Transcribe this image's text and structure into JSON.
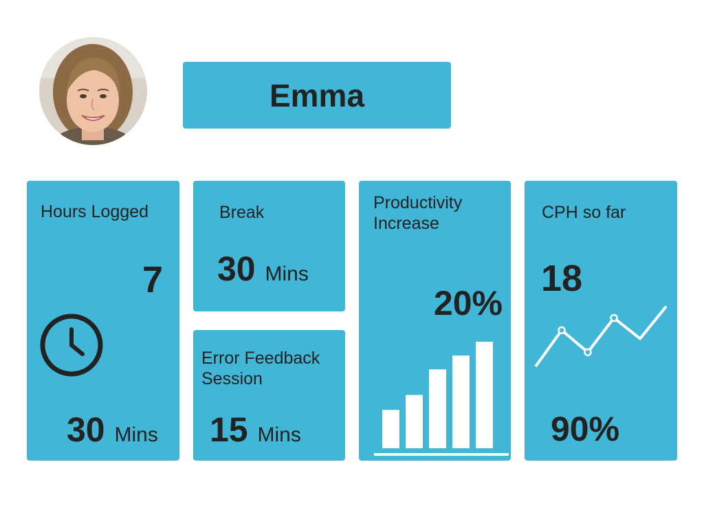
{
  "theme": {
    "card_color": "#42b6d6",
    "text_color": "#222222",
    "chart_color": "#ffffff"
  },
  "profile": {
    "name": "Emma",
    "avatar_icon": "person-photo"
  },
  "cards": {
    "hours_logged": {
      "label": "Hours Logged",
      "hours": "7",
      "minutes": "30",
      "unit": "Mins",
      "icon": "clock-icon"
    },
    "break": {
      "label": "Break",
      "minutes": "30",
      "unit": "Mins"
    },
    "error_feedback": {
      "label_line1": "Error Feedback",
      "label_line2": "Session",
      "minutes": "15",
      "unit": "Mins"
    },
    "productivity": {
      "label_line1": "Productivity",
      "label_line2": "Increase",
      "value": "20%"
    },
    "cph": {
      "label": "CPH so far",
      "value": "18",
      "percent": "90%"
    }
  },
  "chart_data": [
    {
      "type": "bar",
      "categories": [
        "1",
        "2",
        "3",
        "4",
        "5"
      ],
      "values": [
        36,
        50,
        74,
        87,
        100
      ],
      "ylim": [
        0,
        100
      ],
      "grid": false,
      "xlabel": "",
      "ylabel": ""
    },
    {
      "type": "line",
      "x": [
        1,
        2,
        3,
        4,
        5,
        6
      ],
      "values": [
        0,
        56,
        22,
        75,
        43,
        93
      ],
      "ylim": [
        0,
        100
      ],
      "grid": false,
      "xlabel": "",
      "ylabel": ""
    }
  ]
}
